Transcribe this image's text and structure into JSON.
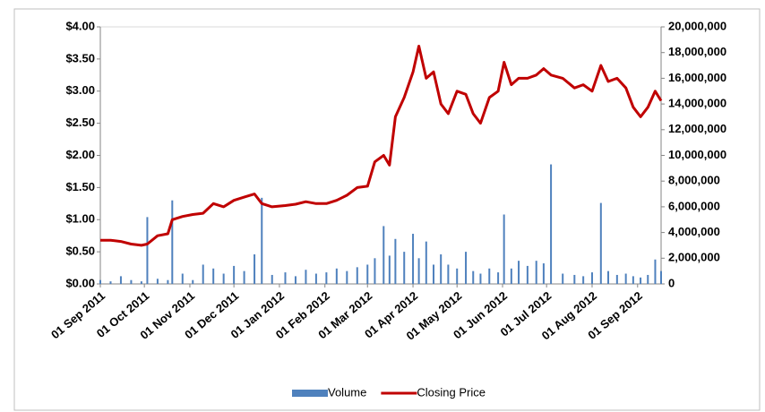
{
  "chart_data": {
    "type": "combo",
    "x": [
      "2011-09-01",
      "2011-09-08",
      "2011-09-15",
      "2011-09-22",
      "2011-09-29",
      "2011-10-03",
      "2011-10-10",
      "2011-10-17",
      "2011-10-20",
      "2011-10-27",
      "2011-11-03",
      "2011-11-10",
      "2011-11-17",
      "2011-11-24",
      "2011-12-01",
      "2011-12-08",
      "2011-12-15",
      "2011-12-20",
      "2011-12-27",
      "2012-01-05",
      "2012-01-12",
      "2012-01-19",
      "2012-01-26",
      "2012-02-02",
      "2012-02-09",
      "2012-02-16",
      "2012-02-23",
      "2012-03-01",
      "2012-03-06",
      "2012-03-12",
      "2012-03-16",
      "2012-03-20",
      "2012-03-26",
      "2012-04-01",
      "2012-04-05",
      "2012-04-10",
      "2012-04-15",
      "2012-04-20",
      "2012-04-25",
      "2012-05-01",
      "2012-05-07",
      "2012-05-12",
      "2012-05-17",
      "2012-05-23",
      "2012-05-29",
      "2012-06-02",
      "2012-06-07",
      "2012-06-12",
      "2012-06-18",
      "2012-06-24",
      "2012-06-29",
      "2012-07-04",
      "2012-07-12",
      "2012-07-20",
      "2012-07-26",
      "2012-08-01",
      "2012-08-07",
      "2012-08-12",
      "2012-08-18",
      "2012-08-24",
      "2012-08-29",
      "2012-09-03",
      "2012-09-08",
      "2012-09-13",
      "2012-09-17"
    ],
    "series": [
      {
        "name": "Volume",
        "color": "#4f81bd",
        "axis": "y2",
        "kind": "bar",
        "values": [
          300000,
          200000,
          600000,
          300000,
          200000,
          5200000,
          400000,
          300000,
          6500000,
          800000,
          300000,
          1500000,
          1200000,
          800000,
          1400000,
          1000000,
          2300000,
          6700000,
          700000,
          900000,
          600000,
          1100000,
          800000,
          900000,
          1200000,
          1000000,
          1300000,
          1500000,
          2000000,
          4500000,
          2200000,
          3500000,
          2500000,
          3900000,
          2000000,
          3300000,
          1500000,
          2300000,
          1500000,
          1200000,
          2500000,
          1000000,
          800000,
          1200000,
          900000,
          5400000,
          1200000,
          1800000,
          1400000,
          1800000,
          1600000,
          9300000,
          800000,
          700000,
          600000,
          900000,
          6300000,
          1000000,
          700000,
          800000,
          600000,
          500000,
          700000,
          1900000,
          1000000
        ]
      },
      {
        "name": "Closing Price",
        "color": "#c00000",
        "kind": "line",
        "values": [
          0.68,
          0.68,
          0.66,
          0.62,
          0.6,
          0.62,
          0.75,
          0.78,
          1.0,
          1.05,
          1.08,
          1.1,
          1.25,
          1.2,
          1.3,
          1.35,
          1.4,
          1.25,
          1.2,
          1.22,
          1.24,
          1.28,
          1.25,
          1.25,
          1.3,
          1.38,
          1.5,
          1.52,
          1.9,
          2.0,
          1.85,
          2.6,
          2.9,
          3.3,
          3.7,
          3.2,
          3.3,
          2.8,
          2.65,
          3.0,
          2.95,
          2.65,
          2.5,
          2.9,
          3.0,
          3.45,
          3.1,
          3.2,
          3.2,
          3.25,
          3.35,
          3.25,
          3.2,
          3.05,
          3.1,
          3.0,
          3.4,
          3.15,
          3.2,
          3.05,
          2.75,
          2.6,
          2.75,
          3.0,
          2.85
        ]
      }
    ],
    "xlim": [
      "2011-09-01",
      "2012-09-17"
    ],
    "xticks": [
      {
        "value": "2011-09-01",
        "label": "01 Sep 2011"
      },
      {
        "value": "2011-10-01",
        "label": "01 Oct 2011"
      },
      {
        "value": "2011-11-01",
        "label": "01 Nov 2011"
      },
      {
        "value": "2011-12-01",
        "label": "01 Dec 2011"
      },
      {
        "value": "2012-01-01",
        "label": "01 Jan 2012"
      },
      {
        "value": "2012-02-01",
        "label": "01 Feb 2012"
      },
      {
        "value": "2012-03-01",
        "label": "01 Mar 2012"
      },
      {
        "value": "2012-04-01",
        "label": "01 Apr 2012"
      },
      {
        "value": "2012-05-01",
        "label": "01 May 2012"
      },
      {
        "value": "2012-06-01",
        "label": "01 Jun 2012"
      },
      {
        "value": "2012-07-01",
        "label": "01 Jul 2012"
      },
      {
        "value": "2012-08-01",
        "label": "01 Aug 2012"
      },
      {
        "value": "2012-09-01",
        "label": "01 Sep 2012"
      }
    ],
    "ylim": [
      0,
      4
    ],
    "yticks": [
      {
        "value": 0,
        "label": "$0.00"
      },
      {
        "value": 0.5,
        "label": "$0.50"
      },
      {
        "value": 1,
        "label": "$1.00"
      },
      {
        "value": 1.5,
        "label": "$1.50"
      },
      {
        "value": 2,
        "label": "$2.00"
      },
      {
        "value": 2.5,
        "label": "$2.50"
      },
      {
        "value": 3,
        "label": "$3.00"
      },
      {
        "value": 3.5,
        "label": "$3.50"
      },
      {
        "value": 4,
        "label": "$4.00"
      }
    ],
    "y2lim": [
      0,
      20000000
    ],
    "y2ticks": [
      0,
      {
        "value": 2000000,
        "label": "2,000,000"
      },
      {
        "value": 4000000,
        "label": "4,000,000"
      },
      {
        "value": 6000000,
        "label": "6,000,000"
      },
      {
        "value": 8000000,
        "label": "8,000,000"
      },
      {
        "value": 10000000,
        "label": "10,000,000"
      },
      {
        "value": 12000000,
        "label": "12,000,000"
      },
      {
        "value": 14000000,
        "label": "14,000,000"
      },
      {
        "value": 16000000,
        "label": "16,000,000"
      },
      {
        "value": 18000000,
        "label": "18,000,000"
      },
      {
        "value": 20000000,
        "label": "20,000,000"
      }
    ],
    "legend": "bottom"
  }
}
